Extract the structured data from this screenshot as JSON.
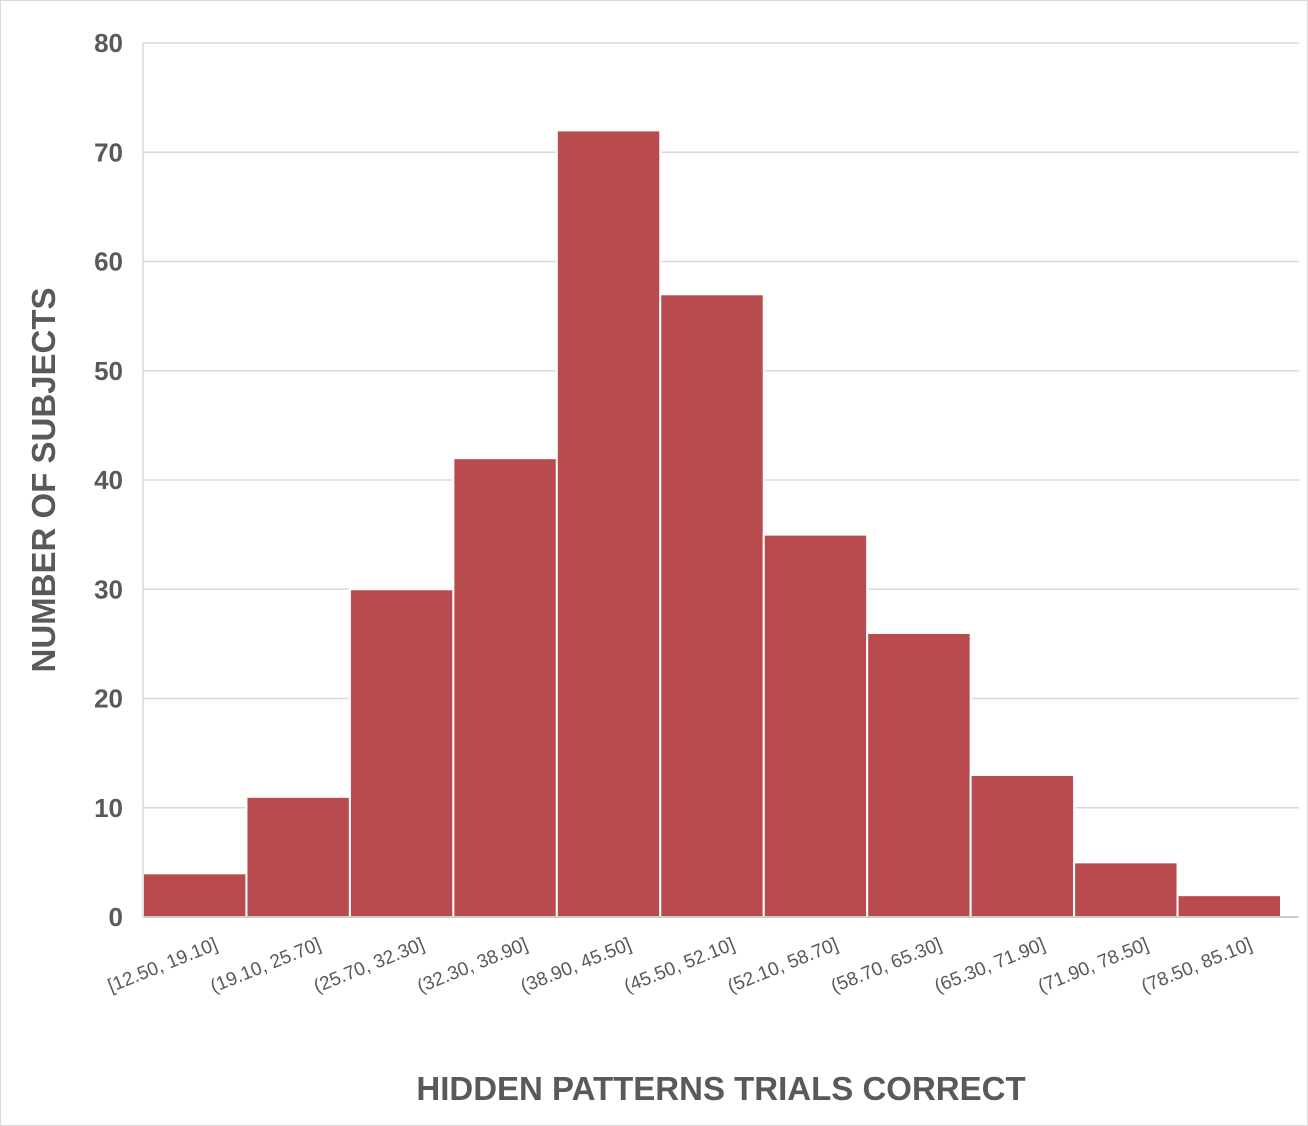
{
  "chart_data": {
    "type": "bar",
    "categories": [
      "[12.50, 19.10]",
      "(19.10, 25.70]",
      "(25.70, 32.30]",
      "(32.30, 38.90]",
      "(38.90, 45.50]",
      "(45.50, 52.10]",
      "(52.10, 58.70]",
      "(58.70, 65.30]",
      "(65.30, 71.90]",
      "(71.90, 78.50]",
      "(78.50, 85.10]"
    ],
    "values": [
      4,
      11,
      30,
      42,
      72,
      57,
      35,
      26,
      13,
      5,
      2
    ],
    "xlabel": "HIDDEN PATTERNS TRIALS CORRECT",
    "ylabel": "NUMBER OF SUBJECTS",
    "ylim": [
      0,
      80
    ],
    "yticks": [
      0,
      10,
      20,
      30,
      40,
      50,
      60,
      70,
      80
    ],
    "grid": true,
    "bar_color": "#b84b4e"
  }
}
